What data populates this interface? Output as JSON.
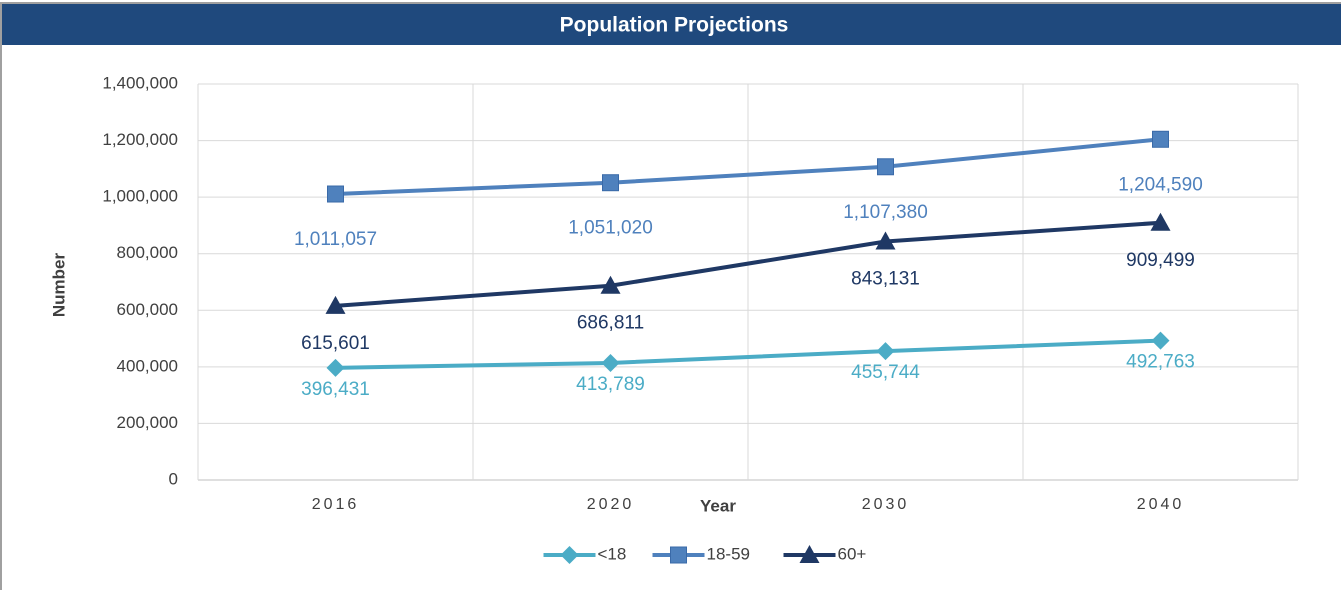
{
  "chart_data": {
    "type": "line",
    "title": "Population Projections",
    "x_label": "Year",
    "y_label": "Number",
    "categories": [
      "2016",
      "2020",
      "2030",
      "2040"
    ],
    "series": [
      {
        "name": "<18",
        "color": "#4bacc6",
        "values": [
          396431,
          413789,
          455744,
          492763
        ],
        "value_labels": [
          "396,431",
          "413,789",
          "455,744",
          "492,763"
        ]
      },
      {
        "name": "18-59",
        "color": "#4f81bd",
        "values": [
          1011057,
          1051020,
          1107380,
          1204590
        ],
        "value_labels": [
          "1,011,057",
          "1,051,020",
          "1,107,380",
          "1,204,590"
        ]
      },
      {
        "name": "60+",
        "color": "#1f3864",
        "values": [
          615601,
          686811,
          843131,
          909499
        ],
        "value_labels": [
          "615,601",
          "686,811",
          "843,131",
          "909,499"
        ]
      }
    ],
    "ylim": [
      0,
      1400000
    ],
    "yticks": [
      0,
      {
        "value": 200000,
        "label": "200,000"
      },
      {
        "value": 400000,
        "label": "400,000"
      },
      {
        "value": 600000,
        "label": "600,000"
      },
      {
        "value": 800000,
        "label": "800,000"
      },
      {
        "value": 1000000,
        "label": "1,000,000"
      },
      {
        "value": 1200000,
        "label": "1,200,000"
      },
      {
        "value": 1400000,
        "label": "1,400,000"
      }
    ],
    "grid": true,
    "legend": "bottom"
  }
}
